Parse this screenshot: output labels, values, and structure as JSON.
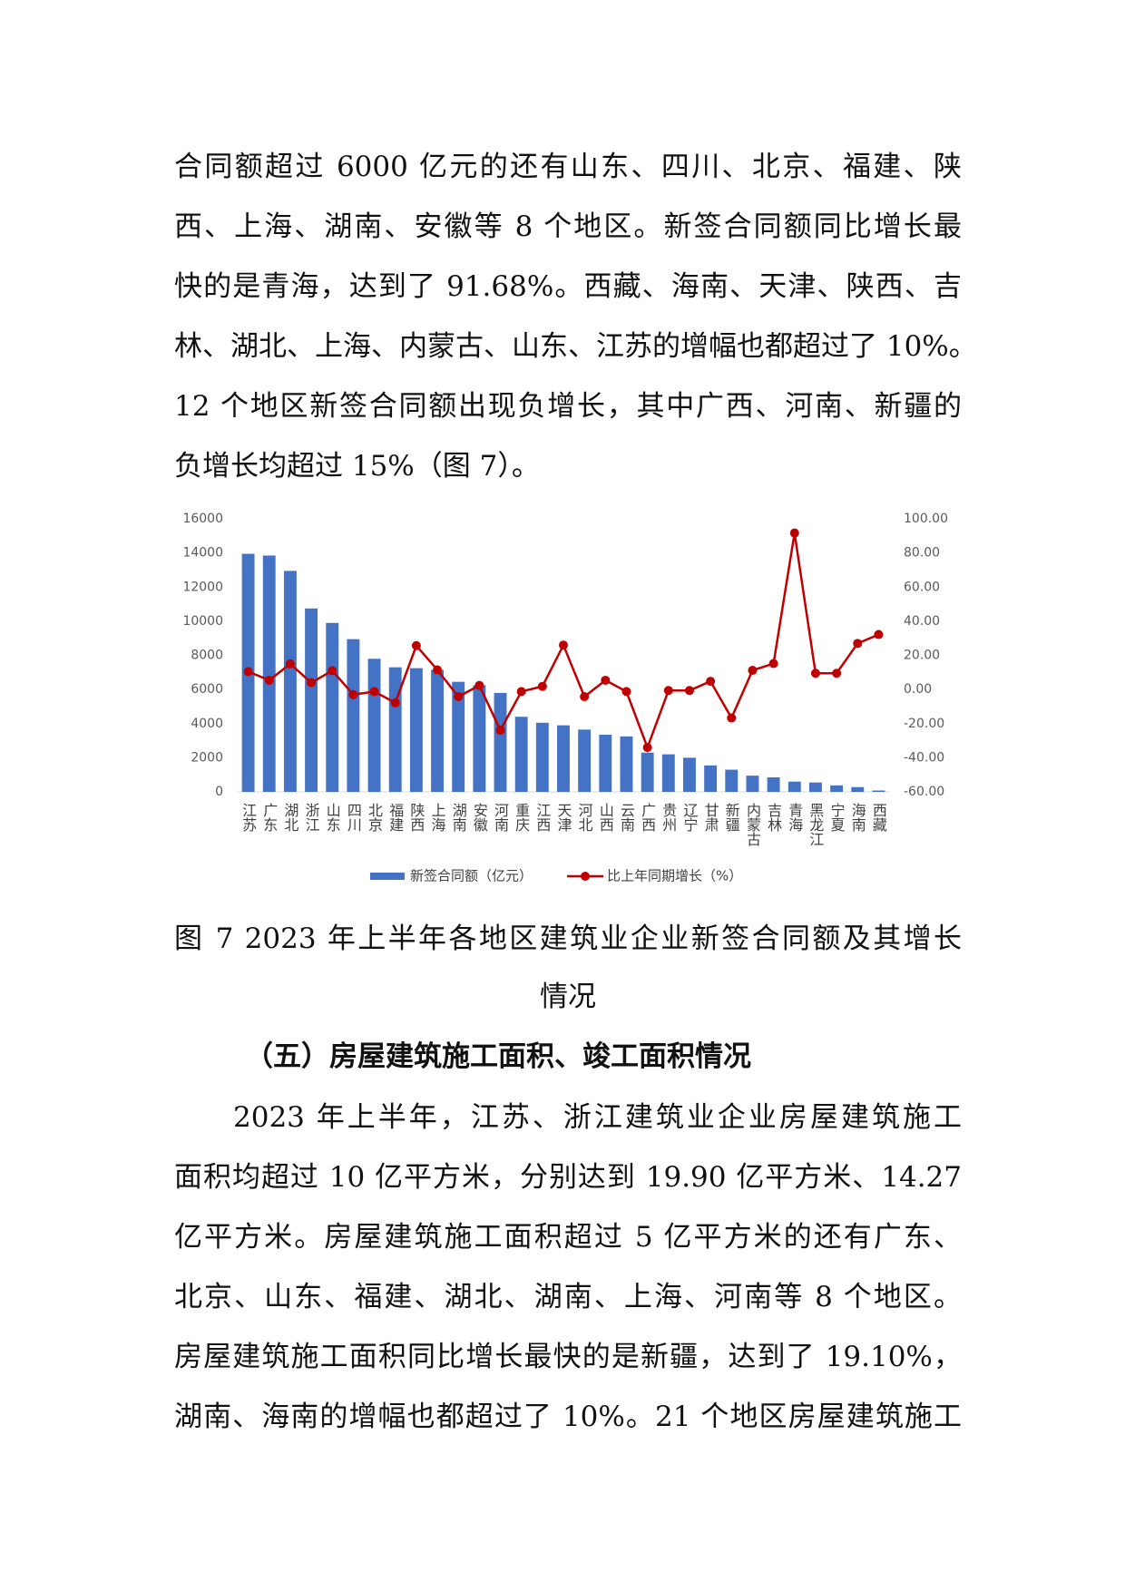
{
  "paragraph1": [
    "合同额超过 6000 亿元的还有山东、四川、北京、福建、陕",
    "西、上海、湖南、安徽等 8 个地区。新签合同额同比增长最",
    "快的是青海，达到了 91.68%。西藏、海南、天津、陕西、吉",
    "林、湖北、上海、内蒙古、山东、江苏的增幅也都超过了 10%。",
    "12 个地区新签合同额出现负增长，其中广西、河南、新疆的",
    "负增长均超过 15%（图 7）。"
  ],
  "chart_data": {
    "type": "bar-line",
    "categories": [
      "江苏",
      "广东",
      "湖北",
      "浙江",
      "山东",
      "四川",
      "北京",
      "福建",
      "陕西",
      "上海",
      "湖南",
      "安徽",
      "河南",
      "重庆",
      "江西",
      "天津",
      "河北",
      "山西",
      "云南",
      "广西",
      "贵州",
      "辽宁",
      "甘肃",
      "新疆",
      "内蒙古",
      "吉林",
      "青海",
      "黑龙江",
      "宁夏",
      "海南",
      "西藏"
    ],
    "series": [
      {
        "name": "新签合同额（亿元）",
        "type": "bar",
        "color": "#4472c4",
        "values": [
          13950,
          13850,
          12950,
          10750,
          9900,
          8950,
          7800,
          7300,
          7250,
          7150,
          6450,
          6250,
          5800,
          4400,
          4050,
          3900,
          3650,
          3350,
          3250,
          2300,
          2200,
          2000,
          1550,
          1300,
          950,
          850,
          600,
          550,
          380,
          280,
          80
        ]
      },
      {
        "name": "比上年同期增长（%）",
        "type": "line",
        "axis": "y2",
        "color": "#c00000",
        "values": [
          10.5,
          5.4,
          15,
          4,
          11,
          -3,
          -1.2,
          -7.8,
          25.7,
          11.5,
          -4.2,
          2.4,
          -23.9,
          -1.2,
          1.8,
          26,
          -4.2,
          5.4,
          -1.2,
          -34,
          -0.6,
          -0.6,
          4.8,
          -16.7,
          11.2,
          15.2,
          91.68,
          9.5,
          9.5,
          27,
          32.2
        ]
      }
    ],
    "ylim": [
      0,
      16000
    ],
    "yticks": [
      0,
      2000,
      4000,
      6000,
      8000,
      10000,
      12000,
      14000,
      16000
    ],
    "y2lim": [
      -60,
      100
    ],
    "y2ticks": [
      {
        "value": -60,
        "label": "-60.00"
      },
      {
        "value": -40,
        "label": "-40.00"
      },
      {
        "value": -20,
        "label": "-20.00"
      },
      {
        "value": 0,
        "label": "0.00"
      },
      {
        "value": 20,
        "label": "20.00"
      },
      {
        "value": 40,
        "label": "40.00"
      },
      {
        "value": 60,
        "label": "60.00"
      },
      {
        "value": 80,
        "label": "80.00"
      },
      {
        "value": 100,
        "label": "100.00"
      }
    ],
    "legend": "bottom"
  },
  "caption": [
    "图 7 2023 年上半年各地区建筑业企业新签合同额及其增长",
    "情况"
  ],
  "heading": "（五）房屋建筑施工面积、竣工面积情况",
  "paragraph2": [
    "2023 年上半年，江苏、浙江建筑业企业房屋建筑施工",
    "面积均超过 10 亿平方米，分别达到 19.90 亿平方米、14.27",
    "亿平方米。房屋建筑施工面积超过 5 亿平方米的还有广东、",
    "北京、山东、福建、湖北、湖南、上海、河南等 8 个地区。",
    "房屋建筑施工面积同比增长最快的是新疆，达到了 19.10%，",
    "湖南、海南的增幅也都超过了 10%。21 个地区房屋建筑施工"
  ]
}
